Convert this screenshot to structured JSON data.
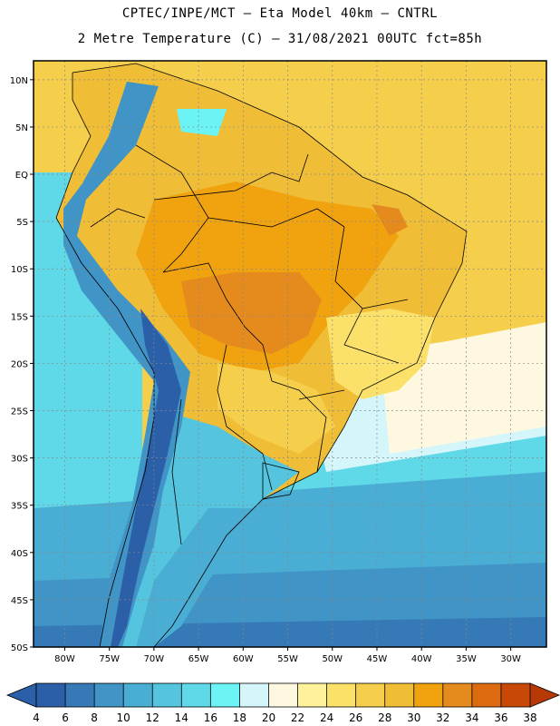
{
  "header": {
    "line1": "CPTEC/INPE/MCT – Eta Model 40km – CNTRL",
    "line2": "2 Metre Temperature (C) – 31/08/2021 00UTC fct=85h"
  },
  "map": {
    "lat_labels": [
      "10N",
      "5N",
      "EQ",
      "5S",
      "10S",
      "15S",
      "20S",
      "25S",
      "30S",
      "35S",
      "40S",
      "45S",
      "50S"
    ],
    "lon_labels": [
      "80W",
      "75W",
      "70W",
      "65W",
      "60W",
      "55W",
      "50W",
      "45W",
      "40W",
      "35W",
      "30W"
    ],
    "lat_values": [
      10,
      5,
      0,
      -5,
      -10,
      -15,
      -20,
      -25,
      -30,
      -35,
      -40,
      -45,
      -50
    ],
    "lon_values": [
      -80,
      -75,
      -70,
      -65,
      -60,
      -55,
      -50,
      -45,
      -40,
      -35,
      -30
    ],
    "region": {
      "lon_min": -83.5,
      "lon_max": -26,
      "lat_min": -50,
      "lat_max": 12
    },
    "variable": "2 Metre Temperature",
    "units": "C"
  },
  "colorbar": {
    "labels": [
      "4",
      "6",
      "8",
      "10",
      "12",
      "14",
      "16",
      "18",
      "20",
      "22",
      "24",
      "26",
      "28",
      "30",
      "32",
      "34",
      "36",
      "38"
    ],
    "colors": [
      "#2b5fa8",
      "#3679b7",
      "#4094c6",
      "#4aadd3",
      "#55c4df",
      "#5fd8e8",
      "#6cf3f5",
      "#d4f6fb",
      "#fff8e1",
      "#fff29a",
      "#fbe06a",
      "#f5cf4c",
      "#f0bd37",
      "#f0a30f",
      "#e58a1c",
      "#dc6a10",
      "#c84808"
    ],
    "low_arrow_color": "#2b5fa8",
    "high_arrow_color": "#b73a06"
  }
}
